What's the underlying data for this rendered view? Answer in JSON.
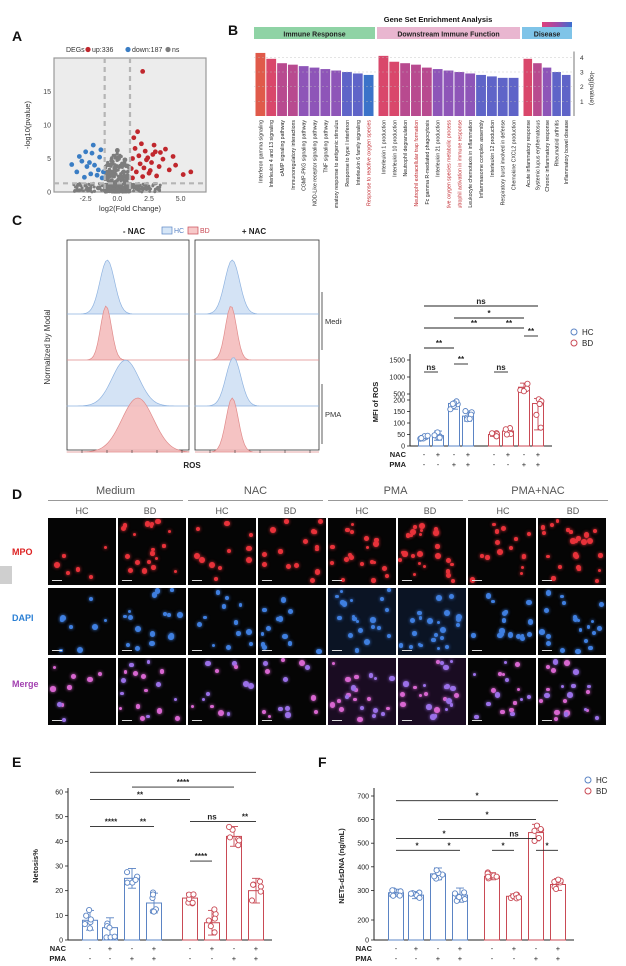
{
  "panel_letters": [
    "A",
    "B",
    "C",
    "D",
    "E",
    "F"
  ],
  "colors": {
    "up": "#c0272d",
    "down": "#3a7dc4",
    "ns": "#7d7d7d",
    "hc": "#5b84c4",
    "bd": "#c94a55",
    "immune": "#8fd3a5",
    "downstream": "#e9b6d0",
    "disease": "#7fc4e8"
  },
  "chart_data": [
    {
      "id": "A",
      "type": "scatter",
      "title": "",
      "legend": {
        "title": "DEGs",
        "entries": [
          "up:336",
          "down:187",
          "ns"
        ],
        "placement": "top"
      },
      "xlabel": "log2(Fold Change)",
      "ylabel": "-log10(pvalue)",
      "xlim": [
        -5,
        7
      ],
      "ylim": [
        0,
        20
      ],
      "xticks": [
        "-2.5",
        "0.0",
        "2.5",
        "5.0"
      ],
      "yticks": [
        "0",
        "5",
        "10",
        "15"
      ],
      "thresholds": {
        "x": [
          -1,
          1
        ],
        "y": 1.3
      },
      "series": [
        {
          "name": "up",
          "color": "#c0272d",
          "points": [
            [
              1.2,
              2.1
            ],
            [
              1.5,
              3.0
            ],
            [
              1.8,
              4.2
            ],
            [
              2.1,
              3.6
            ],
            [
              2.4,
              5.1
            ],
            [
              2.7,
              4.4
            ],
            [
              3.0,
              6.0
            ],
            [
              3.3,
              3.8
            ],
            [
              1.4,
              6.5
            ],
            [
              1.9,
              7.2
            ],
            [
              2.2,
              6.1
            ],
            [
              2.8,
              5.6
            ],
            [
              3.6,
              4.9
            ],
            [
              4.1,
              3.3
            ],
            [
              4.6,
              4.0
            ],
            [
              5.2,
              2.6
            ],
            [
              1.3,
              8.1
            ],
            [
              1.7,
              5.4
            ],
            [
              2.5,
              2.8
            ],
            [
              3.1,
              2.4
            ],
            [
              3.8,
              6.4
            ],
            [
              1.1,
              3.5
            ],
            [
              2.0,
              2.3
            ],
            [
              2.9,
              7.0
            ],
            [
              4.4,
              5.3
            ],
            [
              1.6,
              9.0
            ],
            [
              2.3,
              4.8
            ],
            [
              3.4,
              5.9
            ],
            [
              1.2,
              5.0
            ],
            [
              2.6,
              3.2
            ],
            [
              5.8,
              3.0
            ],
            [
              2.0,
              18.0
            ]
          ]
        },
        {
          "name": "down",
          "color": "#3a7dc4",
          "points": [
            [
              -1.2,
              2.1
            ],
            [
              -1.5,
              3.3
            ],
            [
              -1.8,
              4.0
            ],
            [
              -2.1,
              2.7
            ],
            [
              -2.4,
              3.8
            ],
            [
              -2.8,
              4.6
            ],
            [
              -3.2,
              3.0
            ],
            [
              -1.4,
              5.2
            ],
            [
              -2.0,
              5.8
            ],
            [
              -3.6,
              4.1
            ],
            [
              -1.6,
              2.5
            ],
            [
              -2.6,
              2.2
            ],
            [
              -1.3,
              6.3
            ],
            [
              -2.2,
              4.4
            ],
            [
              -1.9,
              7.0
            ],
            [
              -1.1,
              3.0
            ],
            [
              -3.0,
              5.3
            ],
            [
              -2.5,
              6.0
            ]
          ]
        },
        {
          "name": "ns",
          "color": "#7d7d7d",
          "points": [
            [
              -0.9,
              1.0
            ],
            [
              -0.6,
              0.6
            ],
            [
              -0.3,
              1.2
            ],
            [
              0.0,
              0.4
            ],
            [
              0.3,
              0.9
            ],
            [
              0.6,
              1.3
            ],
            [
              0.9,
              0.7
            ],
            [
              -0.8,
              2.0
            ],
            [
              -0.4,
              2.6
            ],
            [
              0.2,
              2.2
            ],
            [
              0.5,
              3.0
            ],
            [
              0.8,
              2.4
            ],
            [
              -0.2,
              3.5
            ],
            [
              0.4,
              4.2
            ],
            [
              -0.7,
              3.0
            ],
            [
              0.1,
              5.0
            ],
            [
              -0.5,
              1.6
            ],
            [
              0.7,
              1.8
            ],
            [
              -1.5,
              0.6
            ],
            [
              1.5,
              0.8
            ],
            [
              -2.2,
              0.4
            ],
            [
              2.3,
              0.5
            ],
            [
              0.0,
              6.2
            ],
            [
              0.6,
              4.8
            ],
            [
              -0.1,
              1.5
            ]
          ]
        }
      ]
    },
    {
      "id": "B",
      "type": "bar",
      "title": "Gene Set Enrichment Analysis",
      "ylabel": "-log(pvalue)",
      "ylim": [
        0,
        4.5
      ],
      "yticks": [
        "4",
        "3",
        "2",
        "1"
      ],
      "groups": [
        {
          "name": "Immune Response",
          "categories": [
            "Interferon gamma signaling",
            "Interleukin 4 and 13 signaling",
            "cAMP signaling pathway",
            "Immunoregulatory interactions",
            "CGMP-PKG signaling pathway",
            "NOD-Like receptor signaling pathway",
            "TNF signaling pathway",
            "Inflammatory response to antigenic stimulus",
            "Response to type I interferon",
            "Interleukin 6 family signaling",
            "Response to reactive oxygen species"
          ],
          "values": [
            4.3,
            3.9,
            3.6,
            3.5,
            3.4,
            3.3,
            3.2,
            3.1,
            3.0,
            2.9,
            2.8
          ]
        },
        {
          "name": "Downstream Immune Function",
          "categories": [
            "Interleukin 1 production",
            "Interleukin 10 production",
            "Neutrophil degranulation",
            "Neutrophil extracellular trap formation",
            "Fc gamma R-mediated phagocytosis",
            "Interleukin 21 production",
            "Reactive oxygen species metabolic process",
            "Neutrophil activation in immune response",
            "Leukocyte chemotaxis in inflammation",
            "Inflammasome complex assembly",
            "Interleukin 12 production",
            "Respiratory burst involved in defense",
            "Chemokine CXCL2 production"
          ],
          "values": [
            4.1,
            3.7,
            3.6,
            3.5,
            3.3,
            3.2,
            3.1,
            3.0,
            2.9,
            2.8,
            2.7,
            2.6,
            2.6
          ]
        },
        {
          "name": "Disease",
          "categories": [
            "Acute inflammatory response",
            "Systemic lupus erythematosus",
            "Chronic inflammatory response",
            "Rheumatoid arthritis",
            "Inflammatory bowel disease"
          ],
          "values": [
            3.9,
            3.6,
            3.3,
            3.0,
            2.8
          ]
        }
      ],
      "highlighted": [
        "Response to reactive oxygen species",
        "Neutrophil extracellular trap formation",
        "Reactive oxygen species metabolic process",
        "Neutrophil activation in immune response"
      ]
    },
    {
      "id": "C-hist",
      "type": "area",
      "xlabel": "ROS",
      "ylabel": "Normalized by Modal",
      "legend": {
        "entries": [
          "HC",
          "BD"
        ],
        "placement": "top"
      },
      "columns": [
        "- NAC",
        "+ NAC"
      ],
      "rows": [
        "Medium",
        "PMA"
      ]
    },
    {
      "id": "C",
      "type": "bar",
      "ylabel": "MFI of ROS",
      "yticks": [
        "0",
        "50",
        "100",
        "150",
        "200",
        "500",
        "1000",
        "1500"
      ],
      "legend": {
        "entries": [
          "HC",
          "BD"
        ],
        "placement": "top-right"
      },
      "categories": [
        "HC -NAC -PMA",
        "HC +NAC -PMA",
        "HC -NAC +PMA",
        "HC +NAC +PMA",
        "BD -NAC -PMA",
        "BD +NAC -PMA",
        "BD -NAC +PMA",
        "BD +NAC +PMA"
      ],
      "values": [
        38,
        45,
        185,
        130,
        50,
        65,
        700,
        220
      ],
      "errors": [
        8,
        20,
        25,
        22,
        8,
        15,
        120,
        150
      ],
      "significance": [
        "ns",
        "**",
        "**",
        "ns",
        "**",
        "**",
        "*",
        "ns",
        "**"
      ],
      "nac": [
        "-",
        "+",
        "-",
        "+",
        "-",
        "+",
        "-",
        "+"
      ],
      "pma": [
        "-",
        "-",
        "+",
        "+",
        "-",
        "-",
        "+",
        "+"
      ]
    },
    {
      "id": "E",
      "type": "bar",
      "ylabel": "Netosis%",
      "ylim": [
        0,
        60
      ],
      "yticks": [
        "0",
        "10",
        "20",
        "30",
        "40",
        "50",
        "60"
      ],
      "categories": [
        "HC -NAC -PMA",
        "HC +NAC -PMA",
        "HC -NAC +PMA",
        "HC +NAC +PMA",
        "BD -NAC -PMA",
        "BD +NAC -PMA",
        "BD -NAC +PMA",
        "BD +NAC +PMA"
      ],
      "values": [
        8,
        5,
        25,
        15,
        17,
        7,
        42,
        20
      ],
      "errors": [
        4,
        4,
        4,
        4,
        2,
        5,
        4,
        5
      ],
      "significance": [
        "****",
        "**",
        "**",
        "****",
        "ns",
        "**",
        "****",
        "****"
      ],
      "nac": [
        "-",
        "+",
        "-",
        "+",
        "-",
        "+",
        "-",
        "+"
      ],
      "pma": [
        "-",
        "-",
        "+",
        "+",
        "-",
        "-",
        "+",
        "+"
      ]
    },
    {
      "id": "F",
      "type": "bar",
      "ylabel": "NETs-dsDNA (ng/mL)",
      "yticks": [
        "0",
        "200",
        "300",
        "400",
        "500",
        "600",
        "700"
      ],
      "legend": {
        "entries": [
          "HC",
          "BD"
        ],
        "placement": "top-right"
      },
      "categories": [
        "HC -NAC -PMA",
        "HC +NAC -PMA",
        "HC -NAC +PMA",
        "HC +NAC +PMA",
        "BD -NAC -PMA",
        "BD +NAC -PMA",
        "BD -NAC +PMA",
        "BD +NAC +PMA"
      ],
      "values": [
        290,
        280,
        370,
        280,
        360,
        275,
        545,
        325
      ],
      "errors": [
        15,
        15,
        25,
        30,
        15,
        10,
        35,
        25
      ],
      "significance": [
        "*",
        "*",
        "*",
        "*",
        "ns",
        "*",
        "*",
        "*"
      ],
      "nac": [
        "-",
        "+",
        "-",
        "+",
        "-",
        "+",
        "-",
        "+"
      ],
      "pma": [
        "-",
        "-",
        "+",
        "+",
        "-",
        "-",
        "+",
        "+"
      ]
    }
  ],
  "panelD": {
    "conditions": [
      "Medium",
      "NAC",
      "PMA",
      "PMA+NAC"
    ],
    "groups": [
      "HC",
      "BD"
    ],
    "rows": [
      "MPO",
      "DAPI",
      "Merge"
    ]
  }
}
